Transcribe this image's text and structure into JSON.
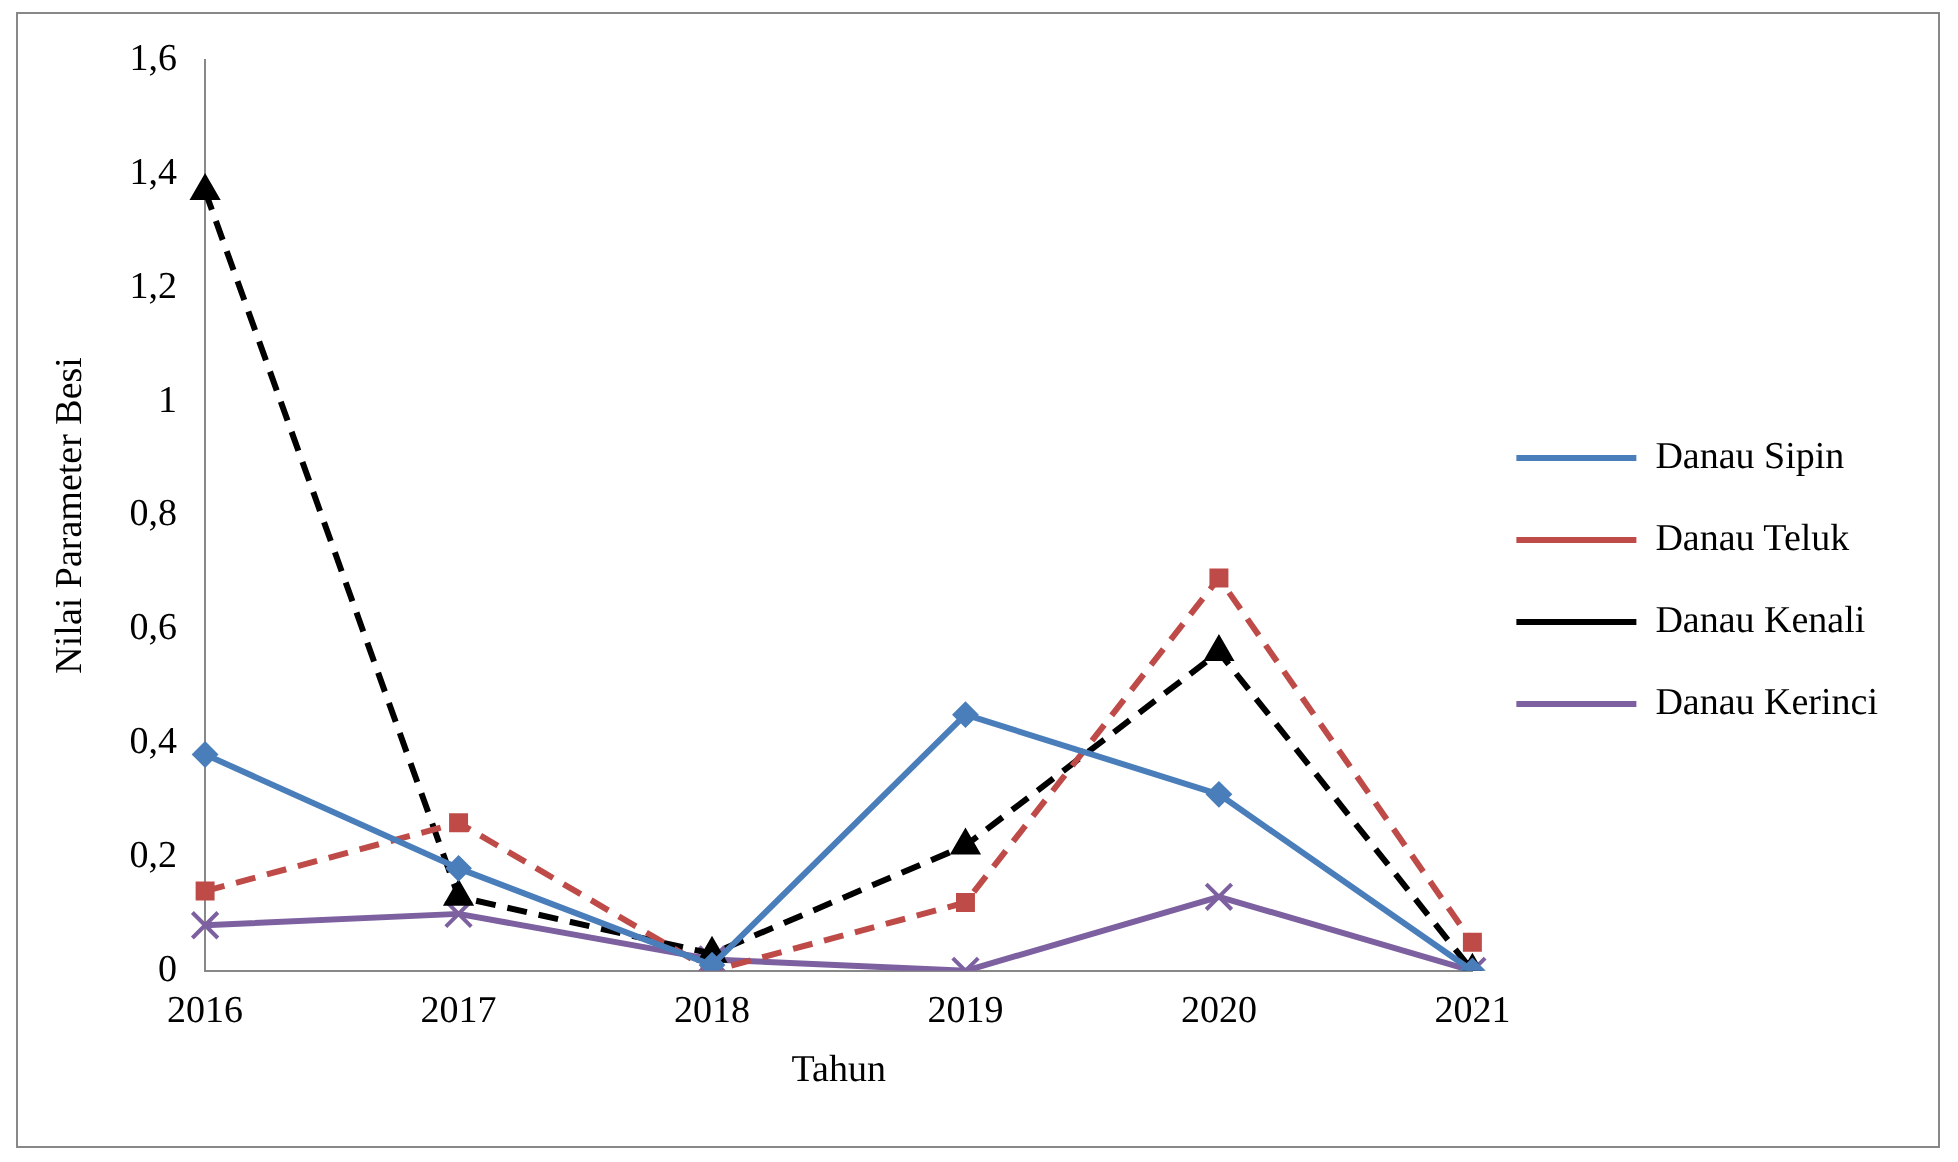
{
  "chart_data": {
    "type": "line",
    "xlabel": "Tahun",
    "ylabel": "Nilai Parameter Besi",
    "categories": [
      "2016",
      "2017",
      "2018",
      "2019",
      "2020",
      "2021"
    ],
    "ylim": [
      0,
      1.6
    ],
    "yticks": [
      0,
      {
        "value": 0.2,
        "label": "0,2"
      },
      {
        "value": 0.4,
        "label": "0,4"
      },
      {
        "value": 0.6,
        "label": "0,6"
      },
      {
        "value": 0.8,
        "label": "0,8"
      },
      1,
      {
        "value": 1.2,
        "label": "1,2"
      },
      {
        "value": 1.4,
        "label": "1,4"
      },
      {
        "value": 1.6,
        "label": "1,6"
      }
    ],
    "grid": false,
    "legend": "right",
    "series": [
      {
        "name": "Danau Sipin",
        "color": "#4a7ebb",
        "marker": "diamond",
        "line_style": "solid",
        "values": [
          0.38,
          0.18,
          0.01,
          0.45,
          0.31,
          0
        ]
      },
      {
        "name": "Danau Teluk",
        "color": "#be4b48",
        "marker": "square",
        "line_style": "dashed",
        "values": [
          0.14,
          0.26,
          0,
          0.12,
          0.69,
          0.05
        ]
      },
      {
        "name": "Danau Kenali",
        "color": "#000000",
        "marker": "triangle",
        "line_style": "dashed",
        "values": [
          1.37,
          0.13,
          0.03,
          0.22,
          0.56,
          0
        ]
      },
      {
        "name": "Danau Kerinci",
        "color": "#7d60a0",
        "marker": "cross",
        "line_style": "solid",
        "values": [
          0.08,
          0.1,
          0.02,
          0,
          0.13,
          0
        ]
      }
    ]
  }
}
